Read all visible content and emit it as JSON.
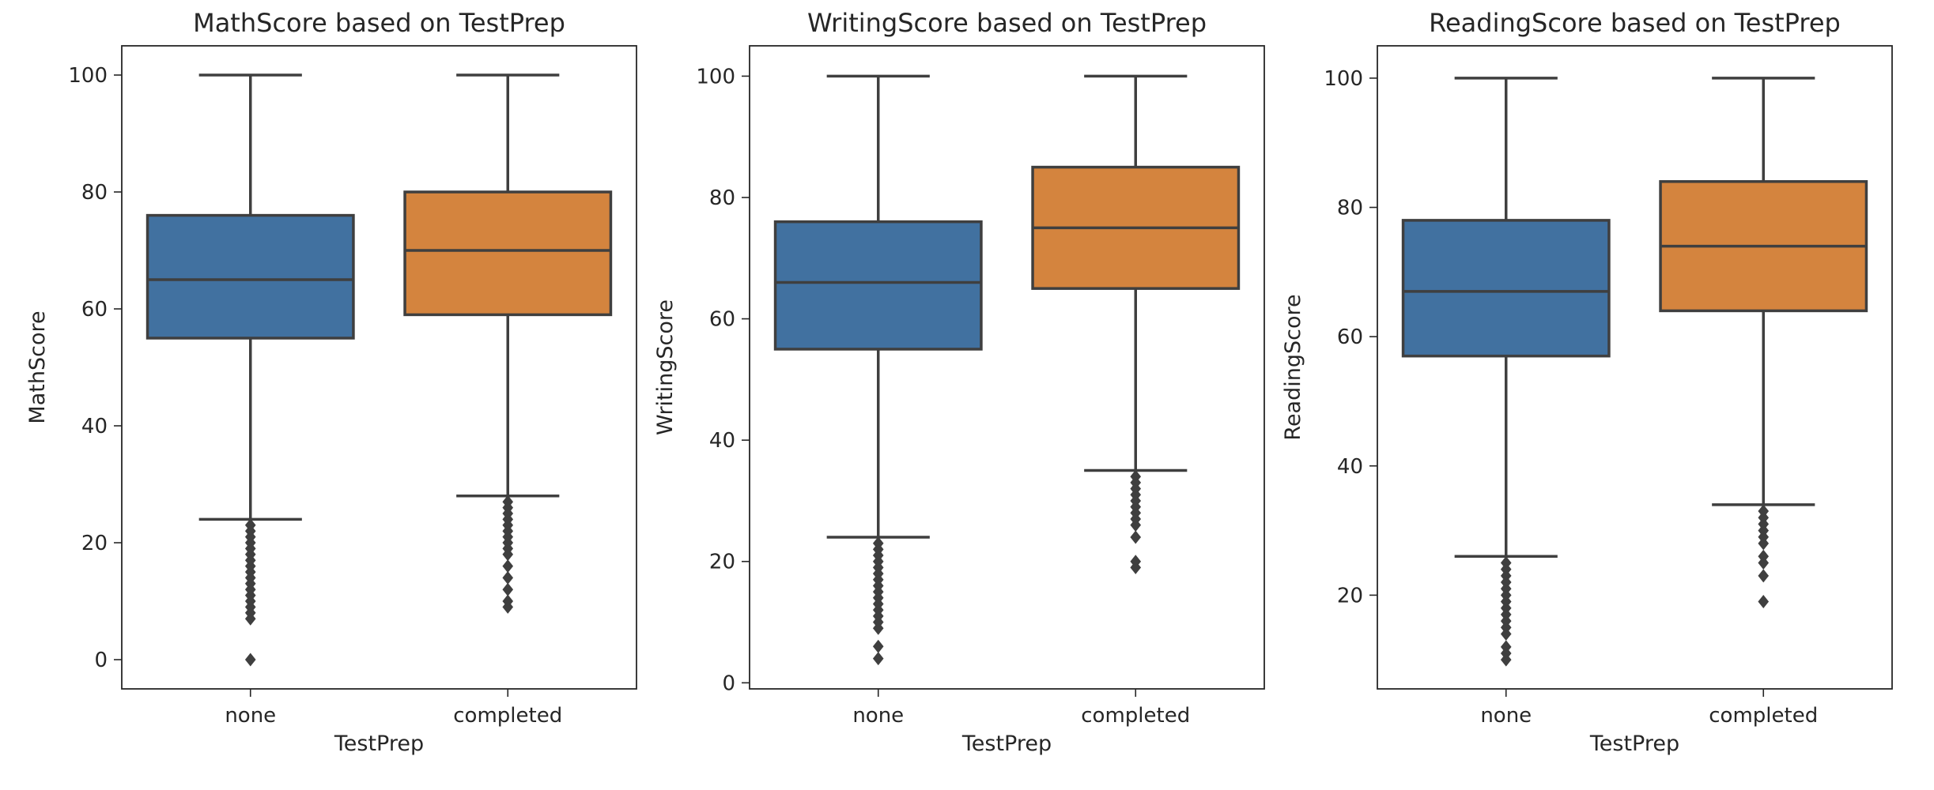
{
  "chart_data": [
    {
      "type": "box",
      "title": "MathScore based on TestPrep",
      "xlabel": "TestPrep",
      "ylabel": "MathScore",
      "categories": [
        "none",
        "completed"
      ],
      "ylim": [
        -5,
        105
      ],
      "yticks": [
        0,
        20,
        40,
        60,
        80,
        100
      ],
      "boxes": [
        {
          "category": "none",
          "color": "#4171a0",
          "whisker_low": 24,
          "q1": 55,
          "median": 65,
          "q3": 76,
          "whisker_high": 100,
          "outliers": [
            23,
            22,
            21,
            20,
            19,
            18,
            17,
            16,
            15,
            14,
            13,
            12,
            11,
            10,
            9,
            8,
            7,
            0
          ]
        },
        {
          "category": "completed",
          "color": "#d4843e",
          "whisker_low": 28,
          "q1": 59,
          "median": 70,
          "q3": 80,
          "whisker_high": 100,
          "outliers": [
            27,
            26,
            25,
            24,
            23,
            22,
            21,
            20,
            19,
            18,
            16,
            14,
            12,
            10,
            9
          ]
        }
      ]
    },
    {
      "type": "box",
      "title": "WritingScore based on TestPrep",
      "xlabel": "TestPrep",
      "ylabel": "WritingScore",
      "categories": [
        "none",
        "completed"
      ],
      "ylim": [
        -1,
        105
      ],
      "yticks": [
        0,
        20,
        40,
        60,
        80,
        100
      ],
      "boxes": [
        {
          "category": "none",
          "color": "#4171a0",
          "whisker_low": 24,
          "q1": 55,
          "median": 66,
          "q3": 76,
          "whisker_high": 100,
          "outliers": [
            23,
            22,
            21,
            20,
            19,
            18,
            17,
            16,
            15,
            14,
            13,
            12,
            11,
            10,
            9,
            6,
            4
          ]
        },
        {
          "category": "completed",
          "color": "#d4843e",
          "whisker_low": 35,
          "q1": 65,
          "median": 75,
          "q3": 85,
          "whisker_high": 100,
          "outliers": [
            34,
            33,
            32,
            31,
            30,
            29,
            28,
            27,
            26,
            24,
            20,
            19
          ]
        }
      ]
    },
    {
      "type": "box",
      "title": "ReadingScore based on TestPrep",
      "xlabel": "TestPrep",
      "ylabel": "ReadingScore",
      "categories": [
        "none",
        "completed"
      ],
      "ylim": [
        5.5,
        105
      ],
      "yticks": [
        20,
        40,
        60,
        80,
        100
      ],
      "boxes": [
        {
          "category": "none",
          "color": "#4171a0",
          "whisker_low": 26,
          "q1": 57,
          "median": 67,
          "q3": 78,
          "whisker_high": 100,
          "outliers": [
            25,
            24,
            23,
            22,
            21,
            20,
            19,
            18,
            17,
            16,
            15,
            14,
            12,
            11,
            10
          ]
        },
        {
          "category": "completed",
          "color": "#d4843e",
          "whisker_low": 34,
          "q1": 64,
          "median": 74,
          "q3": 84,
          "whisker_high": 100,
          "outliers": [
            33,
            32,
            31,
            30,
            29,
            28,
            26,
            25,
            23,
            19
          ]
        }
      ]
    }
  ]
}
